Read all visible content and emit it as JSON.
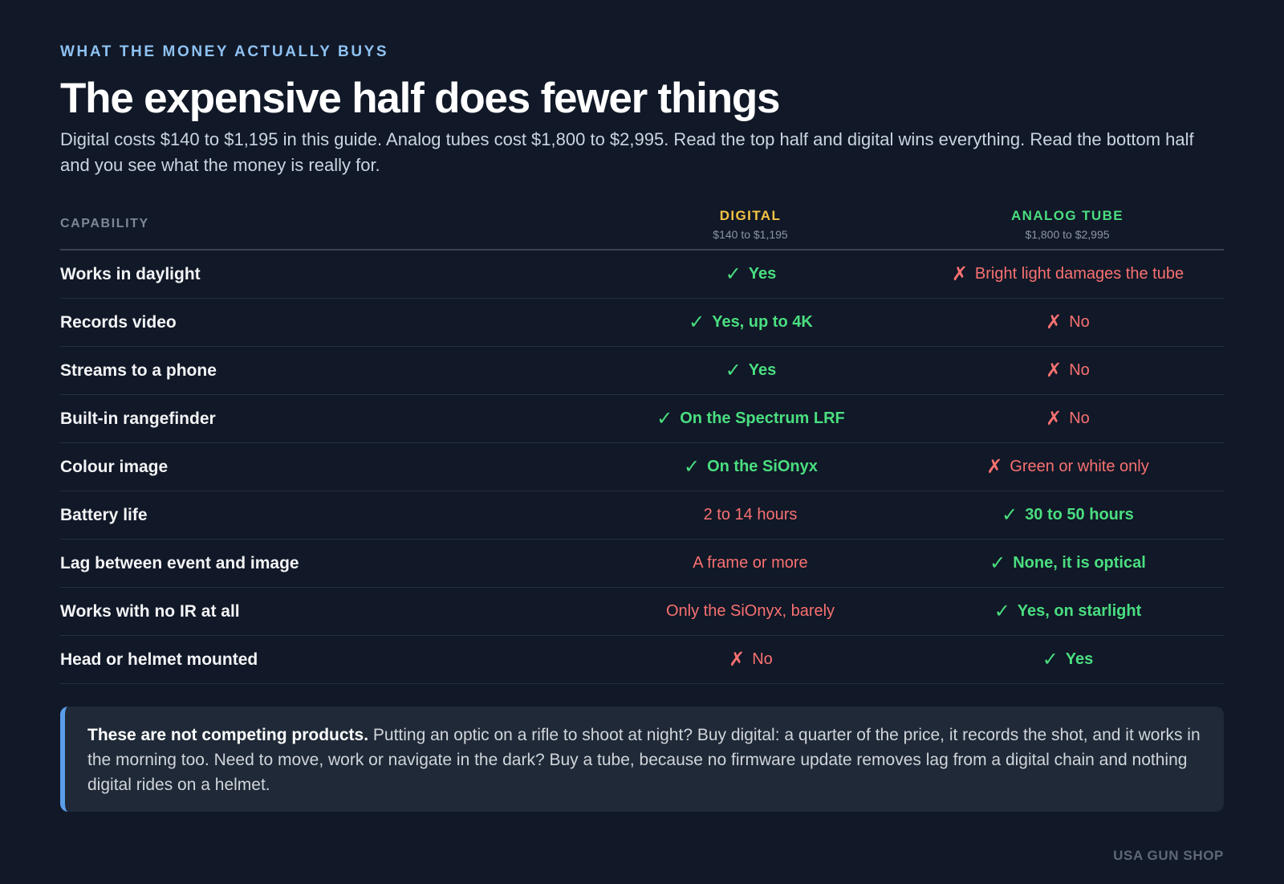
{
  "header": {
    "eyebrow": "WHAT THE MONEY ACTUALLY BUYS",
    "title": "The expensive half does fewer things",
    "subtitle": "Digital costs $140 to $1,195 in this guide. Analog tubes cost $1,800 to $2,995. Read the top half and digital wins everything. Read the bottom half and you see what the money is really for."
  },
  "table": {
    "columns": {
      "capability": "CAPABILITY",
      "digital": {
        "name": "DIGITAL",
        "price": "$140 to $1,195",
        "color": "#f5c444"
      },
      "analog": {
        "name": "ANALOG TUBE",
        "price": "$1,800 to $2,995",
        "color": "#4ade80"
      }
    },
    "rows": [
      {
        "label": "Works in daylight",
        "digital": {
          "text": "Yes",
          "status": "good"
        },
        "analog": {
          "text": "Bright light damages the tube",
          "status": "bad"
        }
      },
      {
        "label": "Records video",
        "digital": {
          "text": "Yes, up to 4K",
          "status": "good"
        },
        "analog": {
          "text": "No",
          "status": "bad"
        }
      },
      {
        "label": "Streams to a phone",
        "digital": {
          "text": "Yes",
          "status": "good"
        },
        "analog": {
          "text": "No",
          "status": "bad"
        }
      },
      {
        "label": "Built-in rangefinder",
        "digital": {
          "text": "On the Spectrum LRF",
          "status": "good"
        },
        "analog": {
          "text": "No",
          "status": "bad"
        }
      },
      {
        "label": "Colour image",
        "digital": {
          "text": "On the SiOnyx",
          "status": "good"
        },
        "analog": {
          "text": "Green or white only",
          "status": "bad"
        }
      },
      {
        "label": "Battery life",
        "digital": {
          "text": "2 to 14 hours",
          "status": "weak"
        },
        "analog": {
          "text": "30 to 50 hours",
          "status": "good"
        }
      },
      {
        "label": "Lag between event and image",
        "digital": {
          "text": "A frame or more",
          "status": "weak"
        },
        "analog": {
          "text": "None, it is optical",
          "status": "good"
        }
      },
      {
        "label": "Works with no IR at all",
        "digital": {
          "text": "Only the SiOnyx, barely",
          "status": "weak"
        },
        "analog": {
          "text": "Yes, on starlight",
          "status": "good"
        }
      },
      {
        "label": "Head or helmet mounted",
        "digital": {
          "text": "No",
          "status": "bad"
        },
        "analog": {
          "text": "Yes",
          "status": "good"
        }
      }
    ],
    "marks": {
      "good": "✓",
      "bad": "✗"
    }
  },
  "note": {
    "lead": "These are not competing products.",
    "body": " Putting an optic on a rifle to shoot at night? Buy digital: a quarter of the price, it records the shot, and it works in the morning too. Need to move, work or navigate in the dark? Buy a tube, because no firmware update removes lag from a digital chain and nothing digital rides on a helmet."
  },
  "brand": "USA GUN SHOP",
  "colors": {
    "background": "#111827",
    "good": "#4ade80",
    "bad": "#f87171",
    "accent": "#8ec2f2",
    "note_border": "#5b9ee8"
  }
}
